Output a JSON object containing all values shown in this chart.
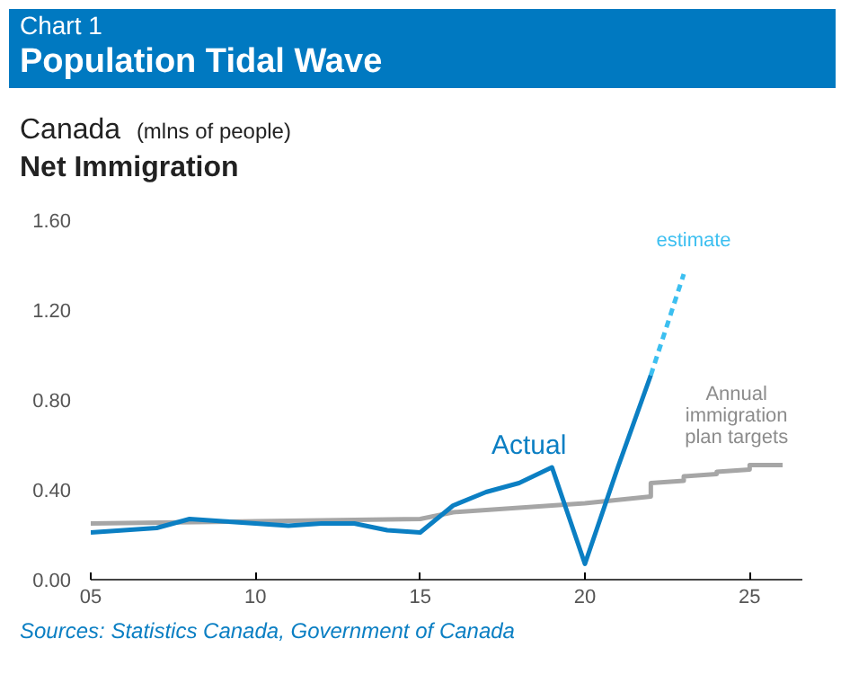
{
  "chart_data": {
    "type": "line",
    "title": "Population Tidal Wave",
    "subtitle": "Net Immigration",
    "ylabel": "(mlns of people)",
    "annotations": [
      "Chart 1",
      "Canada",
      "Sources: Statistics Canada, Government of Canada",
      "Actual",
      "estimate",
      "Annual immigration plan targets"
    ],
    "xlim": [
      5,
      26.6
    ],
    "ylim": [
      0,
      1.6
    ],
    "xticks": [
      {
        "value": 5,
        "label": "05"
      },
      10,
      15,
      20,
      25
    ],
    "yticks": [
      {
        "value": 0,
        "label": "0.00"
      },
      {
        "value": 0.4,
        "label": "0.40"
      },
      {
        "value": 0.8,
        "label": "0.80"
      },
      {
        "value": 1.2,
        "label": "1.20"
      },
      {
        "value": 1.6,
        "label": "1.60"
      }
    ],
    "grid": false,
    "series": [
      {
        "color": "#a6a6a6",
        "x": [
          5,
          10,
          15,
          16,
          20,
          22,
          22,
          23,
          23,
          24,
          24,
          25,
          25,
          26
        ],
        "values": [
          0.25,
          0.26,
          0.27,
          0.3,
          0.34,
          0.37,
          0.43,
          0.44,
          0.46,
          0.47,
          0.48,
          0.49,
          0.51,
          0.51
        ]
      },
      {
        "color": "#0b7fc3",
        "x": [
          5,
          6,
          7,
          8,
          9,
          10,
          11,
          12,
          13,
          14,
          15,
          16,
          17,
          18,
          19,
          20,
          21,
          22
        ],
        "values": [
          0.21,
          0.22,
          0.23,
          0.27,
          0.26,
          0.25,
          0.24,
          0.25,
          0.25,
          0.22,
          0.21,
          0.33,
          0.39,
          0.43,
          0.5,
          0.07,
          0.5,
          0.91
        ]
      },
      {
        "color": "#3cbff0",
        "line_style": "dashed",
        "x": [
          22,
          23
        ],
        "values": [
          0.91,
          1.36
        ]
      }
    ]
  }
}
